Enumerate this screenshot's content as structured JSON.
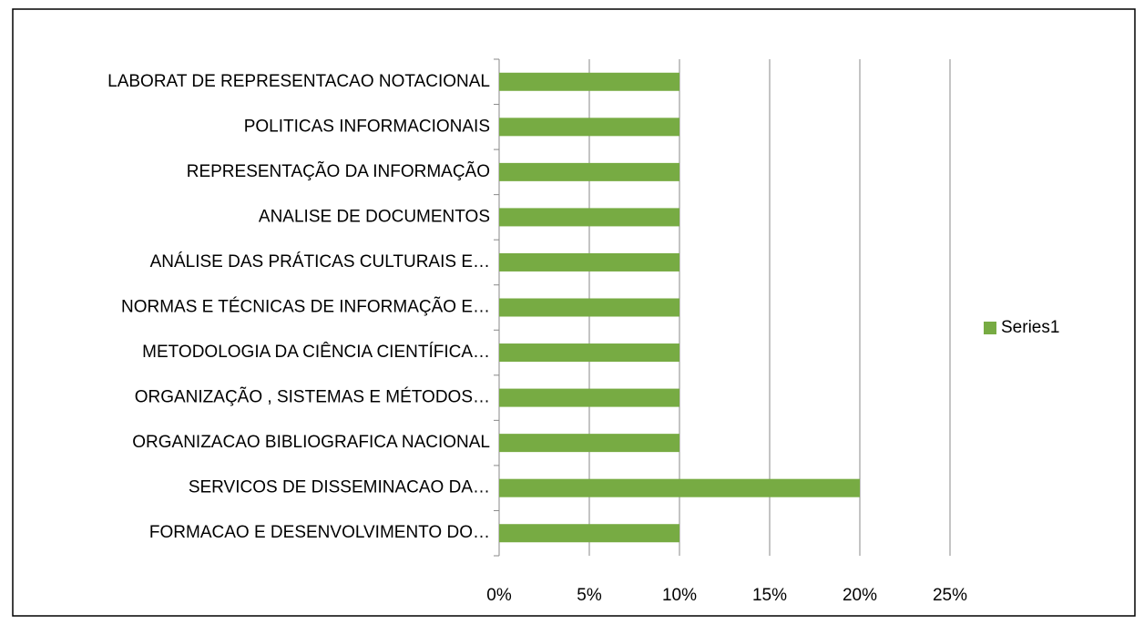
{
  "chart_data": {
    "type": "bar",
    "orientation": "horizontal",
    "categories": [
      "LABORAT DE REPRESENTACAO NOTACIONAL",
      "POLITICAS INFORMACIONAIS",
      "REPRESENTAÇÃO DA INFORMAÇÃO",
      "ANALISE DE DOCUMENTOS",
      "ANÁLISE DAS PRÁTICAS CULTURAIS E…",
      "NORMAS E TÉCNICAS DE INFORMAÇÃO E…",
      "METODOLOGIA DA CIÊNCIA CIENTÍFICA…",
      "ORGANIZAÇÃO , SISTEMAS E MÉTODOS…",
      "ORGANIZACAO BIBLIOGRAFICA NACIONAL",
      "SERVICOS DE DISSEMINACAO DA…",
      "FORMACAO E DESENVOLVIMENTO DO…"
    ],
    "series": [
      {
        "name": "Series1",
        "color": "#77ab43",
        "values": [
          10,
          10,
          10,
          10,
          10,
          10,
          10,
          10,
          10,
          20,
          10
        ]
      }
    ],
    "xlim": [
      0,
      25
    ],
    "xticks": [
      {
        "value": 0,
        "label": "0%"
      },
      {
        "value": 5,
        "label": "5%"
      },
      {
        "value": 10,
        "label": "10%"
      },
      {
        "value": 15,
        "label": "15%"
      },
      {
        "value": 20,
        "label": "20%"
      },
      {
        "value": 25,
        "label": "25%"
      }
    ],
    "grid": true,
    "legend": "right"
  }
}
